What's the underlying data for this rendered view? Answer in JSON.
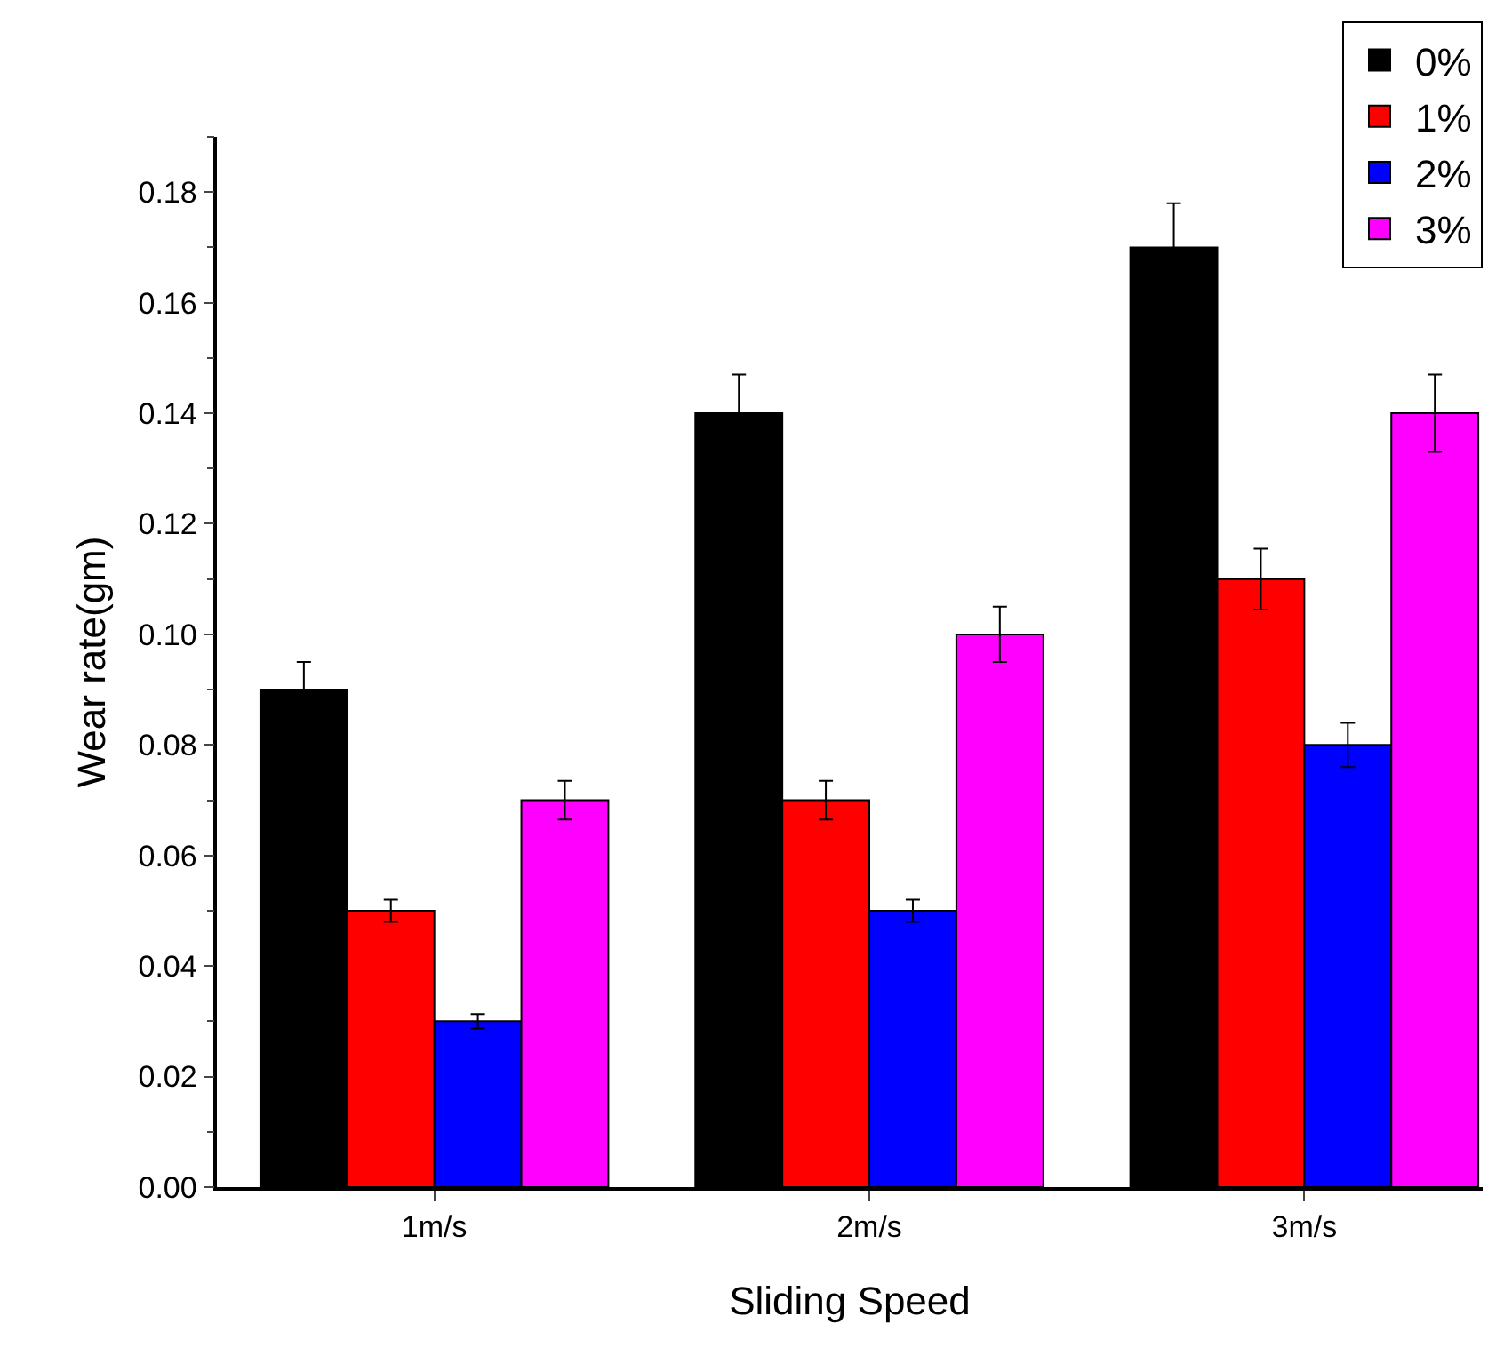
{
  "chart_data": {
    "type": "bar",
    "xlabel": "Sliding Speed",
    "ylabel": "Wear rate(gm)",
    "categories": [
      "1m/s",
      "2m/s",
      "3m/s"
    ],
    "series": [
      {
        "name": "0%",
        "color": "#000000",
        "values": [
          0.09,
          0.14,
          0.17
        ],
        "errors": [
          0.005,
          0.007,
          0.008
        ]
      },
      {
        "name": "1%",
        "color": "#ff0000",
        "values": [
          0.05,
          0.07,
          0.11
        ],
        "errors": [
          0.002,
          0.0035,
          0.0055
        ]
      },
      {
        "name": "2%",
        "color": "#0000ff",
        "values": [
          0.03,
          0.05,
          0.08
        ],
        "errors": [
          0.0013,
          0.002,
          0.004
        ]
      },
      {
        "name": "3%",
        "color": "#ff00ff",
        "values": [
          0.07,
          0.1,
          0.14
        ],
        "errors": [
          0.0035,
          0.005,
          0.007
        ]
      }
    ],
    "ylim": [
      0,
      0.19
    ],
    "yticks": [
      {
        "value": 0,
        "label": "0.00"
      },
      {
        "value": 0.02,
        "label": "0.02"
      },
      {
        "value": 0.04,
        "label": "0.04"
      },
      {
        "value": 0.06,
        "label": "0.06"
      },
      {
        "value": 0.08,
        "label": "0.08"
      },
      {
        "value": 0.1,
        "label": "0.10"
      },
      {
        "value": 0.12,
        "label": "0.12"
      },
      {
        "value": 0.14,
        "label": "0.14"
      },
      {
        "value": 0.16,
        "label": "0.16"
      },
      {
        "value": 0.18,
        "label": "0.18"
      }
    ],
    "grid": false,
    "legend": "top right"
  }
}
